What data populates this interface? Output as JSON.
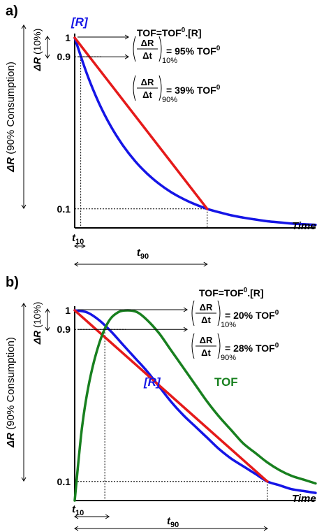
{
  "chart_data": [
    {
      "type": "line",
      "panel_label": "a)",
      "formula": {
        "base": "TOF=TOF",
        "sup": "0",
        "tail": ".[R]"
      },
      "concentration_label": "[R]",
      "y_ticks": [
        "1",
        "0.9",
        "0.1"
      ],
      "x_ticks": {
        "t10": "t",
        "t10_sub": "10",
        "t90": "t",
        "t90_sub": "90"
      },
      "x_axis_title": "Time",
      "y_axis_title": {
        "main": "ΔR",
        "paren": " (90% Consumption)"
      },
      "y_axis_title_small": {
        "main": "ΔR",
        "paren": " (10%)"
      },
      "rate_labels": [
        {
          "frac_num": "ΔR",
          "frac_den": "Δt",
          "sub": "10%",
          "text": "= 95% TOF",
          "sup": "0"
        },
        {
          "frac_num": "ΔR",
          "frac_den": "Δt",
          "sub": "90%",
          "text": "= 39% TOF",
          "sup": "0"
        }
      ],
      "xlim": [
        0,
        1
      ],
      "ylim": [
        0,
        1
      ],
      "t10": 0.025,
      "t90": 0.55,
      "series": [
        {
          "key": "R",
          "color": "#1515e6",
          "x": [
            0,
            0.05,
            0.1,
            0.15,
            0.2,
            0.25,
            0.3,
            0.35,
            0.4,
            0.45,
            0.5,
            0.55,
            0.6,
            0.65,
            0.7,
            0.75,
            0.8,
            0.85,
            0.9,
            0.95,
            1.0
          ],
          "y": [
            1.0,
            0.812,
            0.658,
            0.534,
            0.434,
            0.352,
            0.286,
            0.232,
            0.188,
            0.153,
            0.124,
            0.1,
            0.082,
            0.066,
            0.054,
            0.044,
            0.035,
            0.029,
            0.023,
            0.019,
            0.016
          ]
        },
        {
          "key": "line",
          "color": "#e51a1a",
          "x": [
            0,
            0.55
          ],
          "y": [
            1.0,
            0.1
          ]
        }
      ]
    },
    {
      "type": "line",
      "panel_label": "b)",
      "formula": {
        "base": "TOF=TOF",
        "sup": "0",
        "tail": ".[R]"
      },
      "concentration_label": "[R]",
      "tof_label": "TOF",
      "y_ticks": [
        "1",
        "0.9",
        "0.1"
      ],
      "x_ticks": {
        "t10": "t",
        "t10_sub": "10",
        "t90": "t",
        "t90_sub": "90"
      },
      "x_axis_title": "Time",
      "y_axis_title": {
        "main": "ΔR",
        "paren": " (90% Consumption)"
      },
      "y_axis_title_small": {
        "main": "ΔR",
        "paren": " (10%)"
      },
      "rate_labels": [
        {
          "frac_num": "ΔR",
          "frac_den": "Δt",
          "sub": "10%",
          "text": "= 20% TOF",
          "sup": "0"
        },
        {
          "frac_num": "ΔR",
          "frac_den": "Δt",
          "sub": "90%",
          "text": "= 28% TOF",
          "sup": "0"
        }
      ],
      "xlim": [
        0,
        1
      ],
      "ylim": [
        0,
        1
      ],
      "t10": 0.125,
      "t90": 0.8,
      "series": [
        {
          "key": "R",
          "color": "#1515e6",
          "x": [
            0,
            0.05,
            0.1,
            0.15,
            0.2,
            0.25,
            0.3,
            0.35,
            0.4,
            0.45,
            0.5,
            0.55,
            0.6,
            0.65,
            0.7,
            0.75,
            0.8,
            0.85,
            0.9,
            0.95,
            1.0
          ],
          "y": [
            1.0,
            0.99,
            0.95,
            0.89,
            0.82,
            0.75,
            0.68,
            0.6,
            0.52,
            0.45,
            0.39,
            0.33,
            0.27,
            0.22,
            0.18,
            0.14,
            0.1,
            0.08,
            0.06,
            0.05,
            0.04
          ]
        },
        {
          "key": "line",
          "color": "#e51a1a",
          "x": [
            0,
            0.8
          ],
          "y": [
            1.0,
            0.1
          ]
        },
        {
          "key": "TOF",
          "color": "#18801f",
          "x": [
            0,
            0.03,
            0.06,
            0.1,
            0.14,
            0.18,
            0.22,
            0.26,
            0.3,
            0.35,
            0.4,
            0.45,
            0.5,
            0.55,
            0.6,
            0.65,
            0.7,
            0.75,
            0.8,
            0.85,
            0.9,
            0.95,
            1.0
          ],
          "y": [
            0.0,
            0.38,
            0.62,
            0.82,
            0.94,
            0.99,
            1.0,
            0.99,
            0.95,
            0.88,
            0.79,
            0.7,
            0.61,
            0.52,
            0.44,
            0.37,
            0.3,
            0.25,
            0.2,
            0.16,
            0.13,
            0.11,
            0.09
          ]
        }
      ]
    }
  ]
}
